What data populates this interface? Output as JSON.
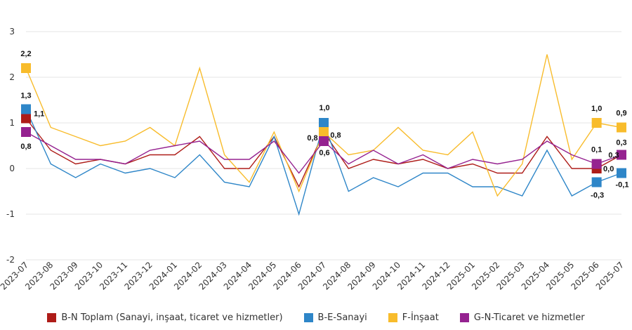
{
  "chart_data": {
    "type": "line",
    "categories": [
      "2023-07",
      "2023-08",
      "2023-09",
      "2023-10",
      "2023-11",
      "2023-12",
      "2024-01",
      "2024-02",
      "2024-03",
      "2024-04",
      "2024-05",
      "2024-06",
      "2024-07",
      "2024-08",
      "2024-09",
      "2024-10",
      "2024-11",
      "2024-12",
      "2025-01",
      "2025-02",
      "2025-03",
      "2025-04",
      "2025-05",
      "2025-06",
      "2025-07"
    ],
    "ylim": [
      -2,
      3
    ],
    "yticks": [
      -2,
      -1,
      0,
      1,
      2,
      3
    ],
    "grid": true,
    "legend_position": "bottom",
    "series": [
      {
        "name": "B-N Toplam (Sanayi, inşaat, ticaret ve hizmetler)",
        "color": "#AE1C18",
        "values": [
          1.1,
          0.4,
          0.1,
          0.2,
          0.1,
          0.3,
          0.3,
          0.7,
          0.0,
          0.0,
          0.7,
          -0.4,
          0.8,
          0.0,
          0.2,
          0.1,
          0.2,
          0.0,
          0.1,
          -0.1,
          -0.1,
          0.7,
          0.0,
          0.0,
          0.3
        ],
        "labels": {
          "0": "1,1",
          "12": "0,8",
          "23": "0,0",
          "24": "0,3"
        }
      },
      {
        "name": "B-E-Sanayi",
        "color": "#2E86C8",
        "values": [
          1.3,
          0.1,
          -0.2,
          0.1,
          -0.1,
          0.0,
          -0.2,
          0.3,
          -0.3,
          -0.4,
          0.7,
          -1.0,
          1.0,
          -0.5,
          -0.2,
          -0.4,
          -0.1,
          -0.1,
          -0.4,
          -0.4,
          -0.6,
          0.4,
          -0.6,
          -0.3,
          -0.1
        ],
        "labels": {
          "0": "1,3",
          "12": "1,0",
          "23": "-0,3",
          "24": "-0,1"
        }
      },
      {
        "name": "F-İnşaat",
        "color": "#F8BC2C",
        "values": [
          2.2,
          0.9,
          0.7,
          0.5,
          0.6,
          0.9,
          0.5,
          2.2,
          0.3,
          -0.3,
          0.8,
          -0.5,
          0.8,
          0.3,
          0.4,
          0.9,
          0.4,
          0.3,
          0.8,
          -0.6,
          0.1,
          2.5,
          0.2,
          1.0,
          0.9
        ],
        "labels": {
          "0": "2,2",
          "12": "0,8",
          "23": "1,0",
          "24": "0,9"
        }
      },
      {
        "name": "G-N-Ticaret ve hizmetler",
        "color": "#952290",
        "values": [
          0.8,
          0.5,
          0.2,
          0.2,
          0.1,
          0.4,
          0.5,
          0.6,
          0.2,
          0.2,
          0.6,
          -0.1,
          0.6,
          0.1,
          0.4,
          0.1,
          0.3,
          0.0,
          0.2,
          0.1,
          0.2,
          0.6,
          0.3,
          0.1,
          0.3
        ],
        "labels": {
          "0": "0,8",
          "12": "0,6",
          "23": "0,1",
          "24": "0,3"
        }
      }
    ]
  }
}
